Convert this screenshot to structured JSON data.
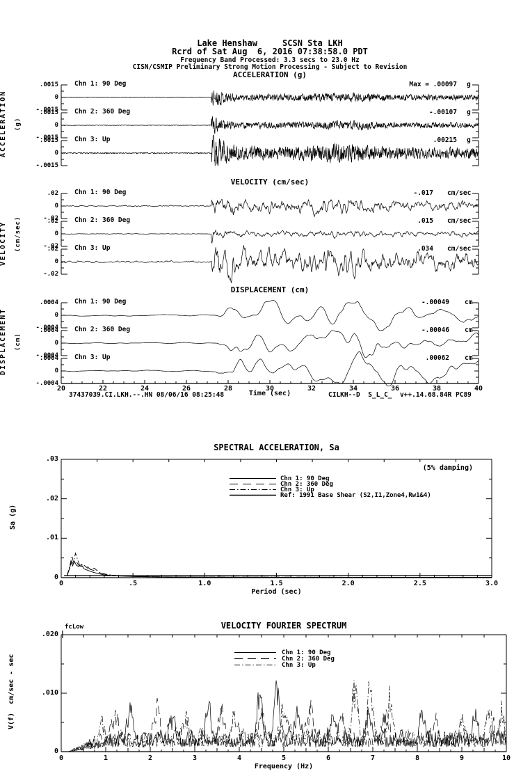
{
  "header": {
    "station_line": "Lake Henshaw     SCSN Sta LKH",
    "record_line": "Rcrd of Sat Aug  6, 2016 07:38:58.0 PDT",
    "band_line": "Frequency Band Processed: 3.3 secs to 23.0 Hz",
    "processing_line": "CISN/CSMIP Preliminary Strong Motion Processing - Subject to Revision"
  },
  "footer": {
    "left": "37437039.CI.LKH.--.HN 08/06/16 08:25:48",
    "right": "CILKH--D  S_L_C_  v++.14.68.84R PC89"
  },
  "chart_data": [
    {
      "id": "acceleration",
      "type": "line",
      "title": "ACCELERATION (g)",
      "axis_label": "ACCELERATION",
      "axis_unit": "(g)",
      "xlabel": "Time (sec)",
      "xlim": [
        20,
        40
      ],
      "x_ticks": [
        "20",
        "22",
        "24",
        "26",
        "28",
        "30",
        "32",
        "34",
        "36",
        "38",
        "40"
      ],
      "scale": 0.0015,
      "scale_labels": {
        "top": ".0015",
        "zero": "0",
        "bottom": "-.0015"
      },
      "event_onset_sec": 27.2,
      "channels": [
        {
          "label": "Chn 1: 90 Deg",
          "max_prefix": "Max =",
          "peak": 0.00097,
          "peak_label": ".00097",
          "unit": "g"
        },
        {
          "label": "Chn 2: 360 Deg",
          "peak": -0.00107,
          "peak_label": "-.00107",
          "unit": "g"
        },
        {
          "label": "Chn 3: Up",
          "peak": 0.00215,
          "peak_label": ".00215",
          "unit": "g"
        }
      ]
    },
    {
      "id": "velocity",
      "type": "line",
      "title": "VELOCITY (cm/sec)",
      "axis_label": "VELOCITY",
      "axis_unit": "(cm/sec)",
      "xlabel": "Time (sec)",
      "xlim": [
        20,
        40
      ],
      "x_ticks": [
        "20",
        "22",
        "24",
        "26",
        "28",
        "30",
        "32",
        "34",
        "36",
        "38",
        "40"
      ],
      "scale": 0.02,
      "scale_labels": {
        "top": ".02",
        "zero": "0",
        "bottom": "-.02"
      },
      "event_onset_sec": 27.2,
      "channels": [
        {
          "label": "Chn 1: 90 Deg",
          "peak": -0.017,
          "peak_label": "-.017",
          "unit": "cm/sec"
        },
        {
          "label": "Chn 2: 360 Deg",
          "peak": 0.015,
          "peak_label": ".015",
          "unit": "cm/sec"
        },
        {
          "label": "Chn 3: Up",
          "peak": 0.034,
          "peak_label": ".034",
          "unit": "cm/sec"
        }
      ]
    },
    {
      "id": "displacement",
      "type": "line",
      "title": "DISPLACEMENT (cm)",
      "axis_label": "DISPLACEMENT",
      "axis_unit": "(cm)",
      "xlabel": "Time (sec)",
      "xlim": [
        20,
        40
      ],
      "x_ticks": [
        "20",
        "22",
        "24",
        "26",
        "28",
        "30",
        "32",
        "34",
        "36",
        "38",
        "40"
      ],
      "scale": 0.0004,
      "scale_labels": {
        "top": ".0004",
        "zero": "0",
        "bottom": "-.0004"
      },
      "event_onset_sec": 27.4,
      "channels": [
        {
          "label": "Chn 1: 90 Deg",
          "peak": -0.00049,
          "peak_label": "-.00049",
          "unit": "cm"
        },
        {
          "label": "Chn 2: 360 Deg",
          "peak": -0.00046,
          "peak_label": "-.00046",
          "unit": "cm"
        },
        {
          "label": "Chn 3: Up",
          "peak": 0.00062,
          "peak_label": ".00062",
          "unit": "cm"
        }
      ]
    },
    {
      "id": "spectral_acceleration",
      "type": "line",
      "title": "SPECTRAL ACCELERATION, Sa",
      "annotation": "(5% damping)",
      "xlabel": "Period (sec)",
      "ylabel": "Sa (g)",
      "xlim": [
        0,
        3
      ],
      "ylim": [
        0,
        0.03
      ],
      "x_ticks": [
        "0",
        ".5",
        "1.0",
        "1.5",
        "2.0",
        "2.5",
        "3.0"
      ],
      "y_ticks": [
        "0",
        ".01",
        ".02",
        ".03"
      ],
      "legend_position": "upper-center",
      "series": [
        {
          "name": "Chn 1: 90 Deg",
          "style": "solid",
          "points": [
            [
              0.04,
              0.0004
            ],
            [
              0.055,
              0.002
            ],
            [
              0.07,
              0.0038
            ],
            [
              0.08,
              0.003
            ],
            [
              0.09,
              0.0042
            ],
            [
              0.105,
              0.0032
            ],
            [
              0.12,
              0.0028
            ],
            [
              0.14,
              0.0033
            ],
            [
              0.16,
              0.0022
            ],
            [
              0.19,
              0.0018
            ],
            [
              0.22,
              0.0014
            ],
            [
              0.26,
              0.001
            ],
            [
              0.3,
              0.0007
            ],
            [
              0.4,
              0.0004
            ],
            [
              0.55,
              0.00025
            ],
            [
              0.8,
              0.00015
            ],
            [
              1.5,
              0.0001
            ],
            [
              3,
              8e-05
            ]
          ]
        },
        {
          "name": "Chn 2: 360 Deg",
          "style": "dash",
          "points": [
            [
              0.04,
              0.0004
            ],
            [
              0.06,
              0.0025
            ],
            [
              0.07,
              0.0042
            ],
            [
              0.085,
              0.0035
            ],
            [
              0.1,
              0.0045
            ],
            [
              0.12,
              0.0032
            ],
            [
              0.14,
              0.0028
            ],
            [
              0.17,
              0.0032
            ],
            [
              0.2,
              0.0022
            ],
            [
              0.24,
              0.0016
            ],
            [
              0.28,
              0.0011
            ],
            [
              0.35,
              0.0006
            ],
            [
              0.45,
              0.0004
            ],
            [
              0.6,
              0.00025
            ],
            [
              1,
              0.00012
            ],
            [
              2,
              0.0001
            ],
            [
              3,
              8e-05
            ]
          ]
        },
        {
          "name": "Chn 3: Up",
          "style": "dashdot",
          "points": [
            [
              0.04,
              0.0005
            ],
            [
              0.06,
              0.003
            ],
            [
              0.075,
              0.0055
            ],
            [
              0.085,
              0.004
            ],
            [
              0.1,
              0.0062
            ],
            [
              0.115,
              0.0045
            ],
            [
              0.13,
              0.003
            ],
            [
              0.15,
              0.0035
            ],
            [
              0.17,
              0.0028
            ],
            [
              0.2,
              0.002
            ],
            [
              0.23,
              0.0024
            ],
            [
              0.27,
              0.0012
            ],
            [
              0.32,
              0.0008
            ],
            [
              0.4,
              0.0005
            ],
            [
              0.5,
              0.0003
            ],
            [
              0.7,
              0.0002
            ],
            [
              1,
              0.00015
            ],
            [
              2,
              0.0001
            ],
            [
              3,
              0.0001
            ]
          ]
        },
        {
          "name": "Ref: 1991 Base Shear (S2,I1,Zone4,Rw1&4)",
          "style": "solid",
          "points": [
            [
              0.02,
              0.0005
            ],
            [
              3,
              0.0005
            ]
          ]
        }
      ]
    },
    {
      "id": "velocity_fourier_spectrum",
      "type": "line",
      "title": "VELOCITY FOURIER SPECTRUM",
      "corner_label": "fcLow",
      "xlabel": "Frequency (Hz)",
      "ylabel": "V(f)  cm/sec - sec",
      "xlim": [
        0,
        10
      ],
      "ylim": [
        0,
        0.02
      ],
      "x_ticks": [
        "0",
        "1",
        "2",
        "3",
        "4",
        "5",
        "6",
        "7",
        "8",
        "9",
        "10"
      ],
      "y_ticks": [
        "0",
        ".010",
        ".020"
      ],
      "noise_floor": 0.003,
      "legend_position": "upper-center",
      "series": [
        {
          "name": "Chn 1: 90 Deg",
          "style": "solid",
          "peaks": [
            [
              1.55,
              0.007
            ],
            [
              2.5,
              0.0055
            ],
            [
              3.3,
              0.0075
            ],
            [
              4.45,
              0.009
            ],
            [
              4.85,
              0.013
            ],
            [
              5.3,
              0.007
            ],
            [
              6.1,
              0.005
            ],
            [
              6.9,
              0.007
            ],
            [
              8.1,
              0.005
            ],
            [
              9.3,
              0.005
            ]
          ]
        },
        {
          "name": "Chn 2: 360 Deg",
          "style": "dash",
          "peaks": [
            [
              1.2,
              0.006
            ],
            [
              2.15,
              0.0065
            ],
            [
              3.6,
              0.006
            ],
            [
              4.5,
              0.007
            ],
            [
              5.6,
              0.006
            ],
            [
              6.3,
              0.0055
            ],
            [
              7.3,
              0.0065
            ],
            [
              8.4,
              0.005
            ],
            [
              9.7,
              0.0045
            ]
          ]
        },
        {
          "name": "Chn 3: Up",
          "style": "dashdot",
          "peaks": [
            [
              0.9,
              0.004
            ],
            [
              2.8,
              0.005
            ],
            [
              3.9,
              0.006
            ],
            [
              5.0,
              0.0065
            ],
            [
              6.6,
              0.012
            ],
            [
              6.95,
              0.011
            ],
            [
              7.4,
              0.0075
            ],
            [
              9.0,
              0.005
            ],
            [
              9.6,
              0.006
            ],
            [
              9.9,
              0.0065
            ]
          ]
        }
      ]
    }
  ]
}
